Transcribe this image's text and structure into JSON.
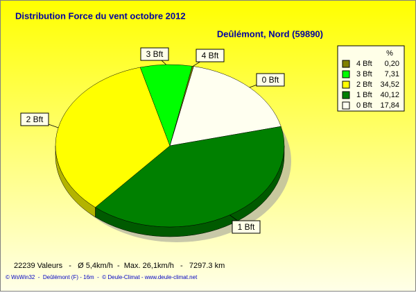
{
  "chart_data": {
    "type": "pie",
    "title": "Distribution Force du vent  octobre 2012",
    "subtitle": "Deûlémont, Nord (59890)",
    "legend_header": "%",
    "categories": [
      "4 Bft",
      "3 Bft",
      "2 Bft",
      "1 Bft",
      "0 Bft"
    ],
    "values": [
      0.2,
      7.31,
      34.52,
      40.12,
      17.84
    ],
    "value_labels": [
      "0,20",
      "7,31",
      "34,52",
      "40,12",
      "17,84"
    ],
    "colors": [
      "#808000",
      "#00ff00",
      "#ffff00",
      "#008000",
      "#fffff0"
    ],
    "legend_position": "upper right",
    "footer": "22239 Valeurs   -   Ø 5,4km/h  -  Max. 26,1km/h   -   7297.3 km",
    "credits": "© WsWin32  -  Deûlémont (F) - 16m  -  © Deule-Climat - www.deule-climat.net"
  }
}
